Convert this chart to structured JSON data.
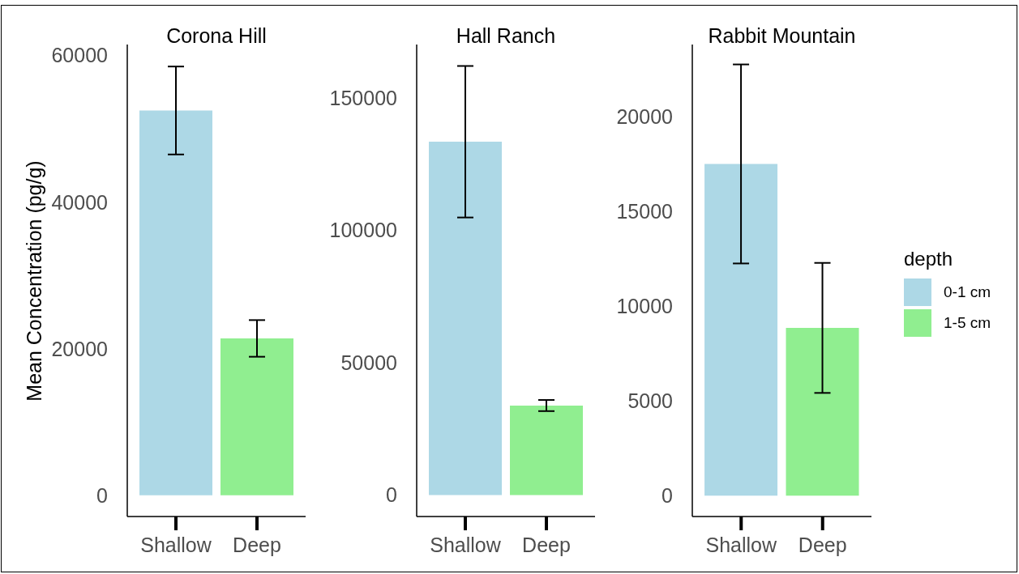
{
  "chart_data": [
    {
      "type": "bar",
      "title": "Corona Hill",
      "ylabel": "Mean Concentration (pg/g)",
      "categories": [
        "Shallow",
        "Deep"
      ],
      "series": [
        {
          "color": "#add8e6",
          "values": [
            52500,
            null
          ],
          "errors": [
            6000,
            null
          ]
        },
        {
          "color": "#90ee90",
          "values": [
            null,
            21400
          ],
          "errors": [
            null,
            2500
          ]
        }
      ],
      "ylim": [
        -2900,
        61500
      ],
      "yticks": [
        0,
        20000,
        40000,
        60000
      ]
    },
    {
      "type": "bar",
      "title": "Hall Ranch",
      "categories": [
        "Shallow",
        "Deep"
      ],
      "series": [
        {
          "color": "#add8e6",
          "values": [
            133400,
            null
          ],
          "errors": [
            28600,
            null
          ]
        },
        {
          "color": "#90ee90",
          "values": [
            null,
            33800
          ],
          "errors": [
            null,
            2100
          ]
        }
      ],
      "ylim": [
        -8100,
        170100
      ],
      "yticks": [
        0,
        50000,
        100000,
        150000
      ]
    },
    {
      "type": "bar",
      "title": "Rabbit Mountain",
      "categories": [
        "Shallow",
        "Deep"
      ],
      "series": [
        {
          "name": "0-1 cm",
          "color": "#add8e6",
          "values": [
            17500,
            null
          ],
          "errors": [
            5250,
            null
          ]
        },
        {
          "name": "1-5 cm",
          "color": "#90ee90",
          "values": [
            null,
            8850
          ],
          "errors": [
            null,
            3430
          ]
        }
      ],
      "ylim": [
        -1100,
        23800
      ],
      "yticks": [
        0,
        5000,
        10000,
        15000,
        20000
      ],
      "legend": "right",
      "legend_title": "depth"
    }
  ]
}
